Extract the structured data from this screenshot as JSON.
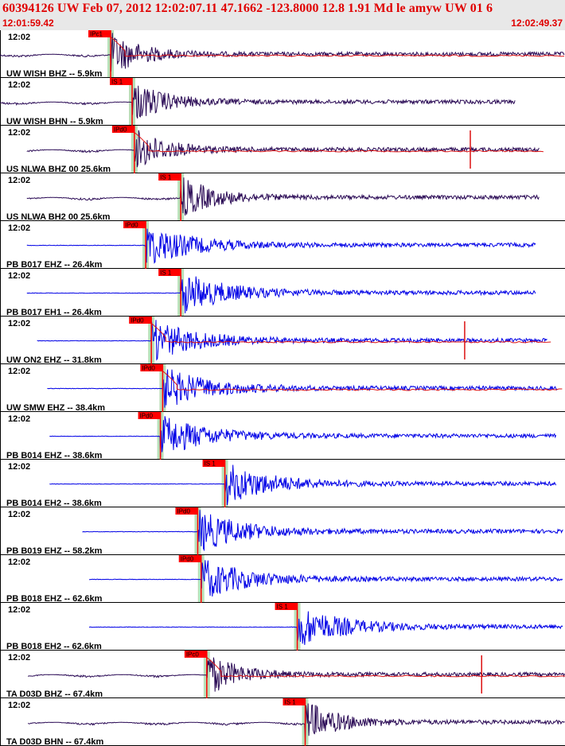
{
  "header": {
    "title": "60394126 UW Feb 07, 2012 12:02:07.11   47.1662 -123.8000 12.8 1.91 Md le amyw UW 01   6",
    "start_time": "12:01:59.42",
    "end_time": "12:02:49.37"
  },
  "colors": {
    "header_text": "#e00000",
    "header_bg": "#e8e8e8",
    "broadband_trace": "#2a0a55",
    "short_period_trace": "#0000e6",
    "synthetic_trace": "#dd1111",
    "pick_box": "#ff0000",
    "pick_band": "#b8e0b8"
  },
  "chart_data": {
    "type": "line",
    "title": "60394126 UW Feb 07, 2012 12:02:07.11   47.1662 -123.8000 12.8 1.91 Md le amyw UW 01   6",
    "x_range": [
      "12:01:59.42",
      "12:02:49.37"
    ],
    "panels": [
      {
        "label": "UW WISH BHZ -- 5.9km",
        "time": "12:02",
        "pick": "IPc1",
        "pick_type": "P",
        "pick_time": "12:02:09.2",
        "color": "broadband",
        "start_time": "12:01:59.42",
        "end_time": "12:02:49.37",
        "synthetic": true,
        "spike_time": null
      },
      {
        "label": "UW WISH BHN -- 5.9km",
        "time": "12:02",
        "pick": "IS 1",
        "pick_type": "S",
        "pick_time": "12:02:11.1",
        "color": "broadband",
        "start_time": "12:01:59.42",
        "end_time": "12:02:45.0",
        "synthetic": false,
        "spike_time": null
      },
      {
        "label": "US NLWA BHZ 00 25.6km",
        "time": "12:02",
        "pick": "IPd0",
        "pick_type": "P",
        "pick_time": "12:02:11.3",
        "color": "broadband",
        "start_time": "12:02:01.8",
        "end_time": "12:02:47.1",
        "synthetic": true,
        "spike_time": "12:02:41.0"
      },
      {
        "label": "US NLWA BH2 00 25.6km",
        "time": "12:02",
        "pick": "IS 1",
        "pick_type": "S",
        "pick_time": "12:02:15.4",
        "color": "broadband",
        "start_time": "12:02:01.8",
        "end_time": "12:02:47.1",
        "synthetic": false,
        "spike_time": null
      },
      {
        "label": "PB B017 EHZ -- 26.4km",
        "time": "12:02",
        "pick": "IPd0",
        "pick_type": "P",
        "pick_time": "12:02:12.3",
        "color": "short_period",
        "start_time": "12:02:01.8",
        "end_time": "12:02:46.8",
        "synthetic": false,
        "spike_time": null
      },
      {
        "label": "PB B017 EH1 -- 26.4km",
        "time": "12:02",
        "pick": "IS 1",
        "pick_type": "S",
        "pick_time": "12:02:15.4",
        "color": "short_period",
        "start_time": "12:02:01.8",
        "end_time": "12:02:46.8",
        "synthetic": false,
        "spike_time": null
      },
      {
        "label": "UW ON2 EHZ -- 31.8km",
        "time": "12:02",
        "pick": "IPd0",
        "pick_type": "P",
        "pick_time": "12:02:12.8",
        "color": "short_period",
        "start_time": "12:02:02.7",
        "end_time": "12:02:47.8",
        "synthetic": true,
        "spike_time": "12:02:40.5"
      },
      {
        "label": "UW SMW EHZ -- 38.4km",
        "time": "12:02",
        "pick": "IPd0",
        "pick_type": "P",
        "pick_time": "12:02:13.8",
        "color": "short_period",
        "start_time": "12:02:03.6",
        "end_time": "12:02:48.7",
        "synthetic": true,
        "spike_time": null
      },
      {
        "label": "PB B014 EHZ -- 38.6km",
        "time": "12:02",
        "pick": "IPd0",
        "pick_type": "P",
        "pick_time": "12:02:13.6",
        "color": "short_period",
        "start_time": "12:02:03.8",
        "end_time": "12:02:48.6",
        "synthetic": false,
        "spike_time": null
      },
      {
        "label": "PB B014 EH2 -- 38.6km",
        "time": "12:02",
        "pick": "IS 1",
        "pick_type": "S",
        "pick_time": "12:02:19.3",
        "color": "short_period",
        "start_time": "12:02:03.8",
        "end_time": "12:02:48.6",
        "synthetic": false,
        "spike_time": null
      },
      {
        "label": "PB B019 EHZ -- 58.2km",
        "time": "12:02",
        "pick": "IPd0",
        "pick_type": "P",
        "pick_time": "12:02:16.9",
        "color": "short_period",
        "start_time": "12:02:06.7",
        "end_time": "12:02:49.2",
        "synthetic": false,
        "spike_time": null
      },
      {
        "label": "PB B018 EHZ -- 62.6km",
        "time": "12:02",
        "pick": "IPd0",
        "pick_type": "P",
        "pick_time": "12:02:17.2",
        "color": "short_period",
        "start_time": "12:02:07.3",
        "end_time": "12:02:49.2",
        "synthetic": false,
        "spike_time": null
      },
      {
        "label": "PB B018 EH2 -- 62.6km",
        "time": "12:02",
        "pick": "IS 1",
        "pick_type": "S",
        "pick_time": "12:02:25.7",
        "color": "short_period",
        "start_time": "12:02:07.3",
        "end_time": "12:02:49.2",
        "synthetic": false,
        "spike_time": null
      },
      {
        "label": "TA D03D BHZ -- 67.4km",
        "time": "12:02",
        "pick": "IPc0",
        "pick_type": "P",
        "pick_time": "12:02:17.7",
        "color": "broadband",
        "start_time": "12:02:01.9",
        "end_time": "12:02:49.37",
        "synthetic": true,
        "spike_time": "12:02:42.0"
      },
      {
        "label": "TA D03D BHN -- 67.4km",
        "time": "12:02",
        "pick": "IS 1",
        "pick_type": "S",
        "pick_time": "12:02:26.4",
        "color": "broadband",
        "start_time": "12:02:01.9",
        "end_time": "12:02:49.37",
        "synthetic": false,
        "spike_time": null
      }
    ]
  }
}
